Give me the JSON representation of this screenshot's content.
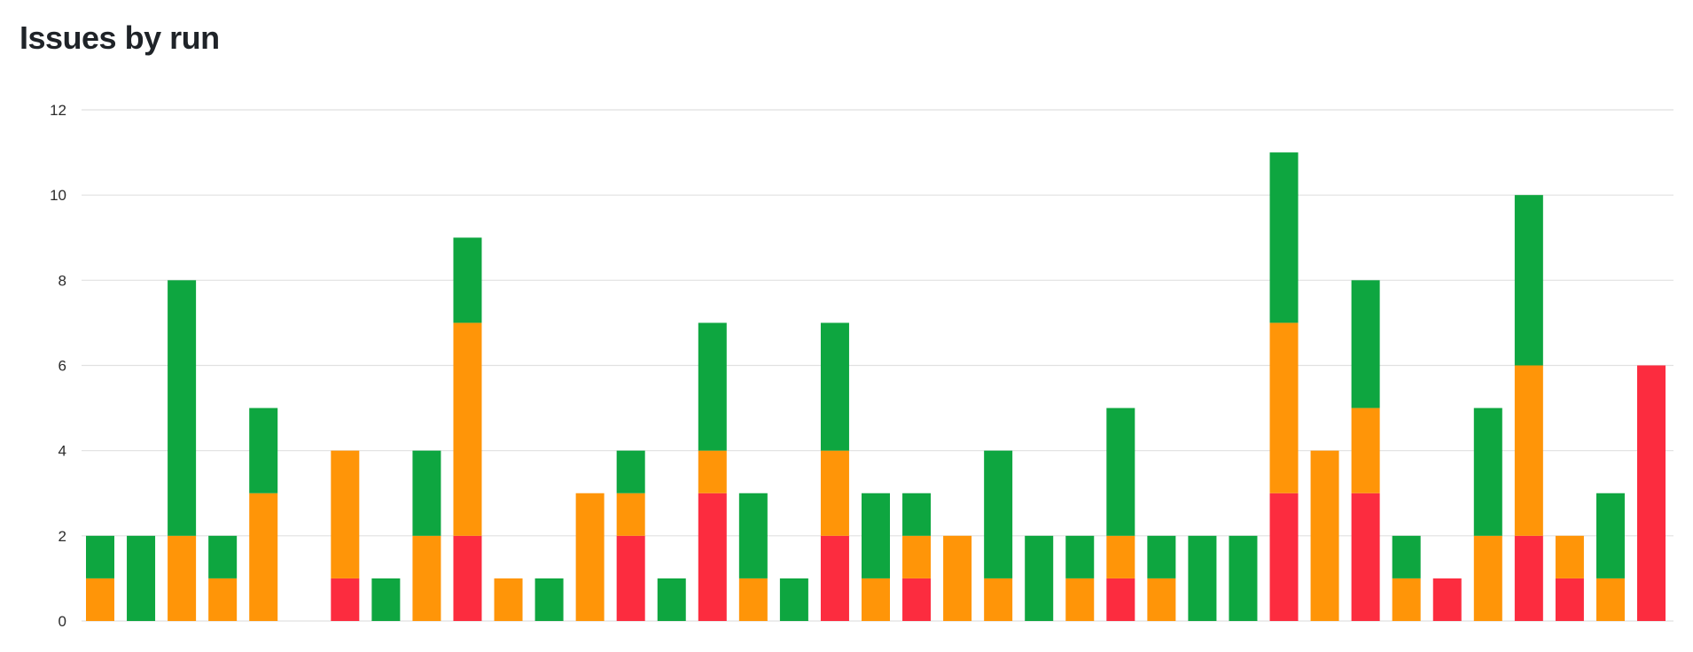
{
  "header": {
    "title": "Issues by run"
  },
  "colors": {
    "red": "#fc2c3f",
    "orange": "#ff9508",
    "green": "#0ea640",
    "grid": "#e1e1e1"
  },
  "chart_data": {
    "type": "bar",
    "stacked": true,
    "title": "Issues by run",
    "xlabel": "",
    "ylabel": "",
    "ylim": [
      0,
      12
    ],
    "yticks": [
      0,
      2,
      4,
      6,
      8,
      10,
      12
    ],
    "grid": true,
    "legend": "none",
    "series": [
      {
        "color": "#fc2c3f",
        "values": [
          0,
          0,
          0,
          0,
          0,
          0,
          1,
          0,
          0,
          2,
          0,
          0,
          0,
          2,
          0,
          3,
          0,
          0,
          2,
          0,
          1,
          0,
          0,
          0,
          0,
          1,
          0,
          0,
          0,
          3,
          0,
          3,
          0,
          1,
          0,
          2,
          1,
          0,
          6
        ]
      },
      {
        "color": "#ff9508",
        "values": [
          1,
          0,
          2,
          1,
          3,
          0,
          3,
          0,
          2,
          5,
          1,
          0,
          3,
          1,
          0,
          1,
          1,
          0,
          2,
          1,
          1,
          2,
          1,
          0,
          1,
          1,
          1,
          0,
          0,
          4,
          4,
          2,
          1,
          0,
          2,
          4,
          1,
          1,
          0
        ]
      },
      {
        "color": "#0ea640",
        "values": [
          1,
          2,
          6,
          1,
          2,
          0,
          0,
          1,
          2,
          2,
          0,
          1,
          0,
          1,
          1,
          3,
          2,
          1,
          3,
          2,
          1,
          0,
          3,
          2,
          1,
          3,
          1,
          2,
          2,
          4,
          0,
          3,
          1,
          0,
          3,
          4,
          0,
          2,
          0
        ]
      }
    ]
  }
}
